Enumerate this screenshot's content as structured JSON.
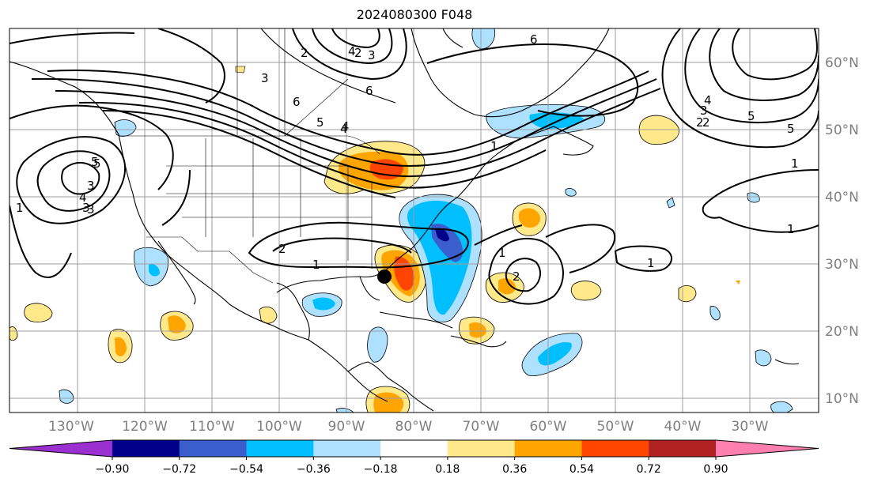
{
  "title": "2024080300 F048",
  "longitude_labels": [
    "130°W",
    "120°W",
    "110°W",
    "100°W",
    "90°W",
    "80°W",
    "70°W",
    "60°W",
    "50°W",
    "40°W",
    "30°W"
  ],
  "latitude_labels": [
    "60°N",
    "50°N",
    "40°N",
    "30°N",
    "20°N",
    "10°N"
  ],
  "colorbar": {
    "tick_labels": [
      "−0.90",
      "−0.72",
      "−0.54",
      "−0.36",
      "−0.18",
      "0.18",
      "0.36",
      "0.54",
      "0.72",
      "0.90"
    ],
    "colors": [
      "#9b30d0",
      "#00008b",
      "#3a5fcd",
      "#00bfff",
      "#aee0ff",
      "#ffffff",
      "#ffe98a",
      "#ffa500",
      "#ff4500",
      "#b22222",
      "#ff7fae"
    ]
  },
  "contour_labels": [
    "6",
    "5",
    "4",
    "3",
    "2",
    "1",
    "1",
    "2",
    "3",
    "4",
    "5",
    "6",
    "5",
    "4",
    "3",
    "2",
    "1",
    "1",
    "2",
    "3",
    "4",
    "5",
    "6",
    "2",
    "3",
    "1",
    "1",
    "5",
    "4",
    "3",
    "2",
    "1"
  ],
  "marker": "storm-center-dot"
}
